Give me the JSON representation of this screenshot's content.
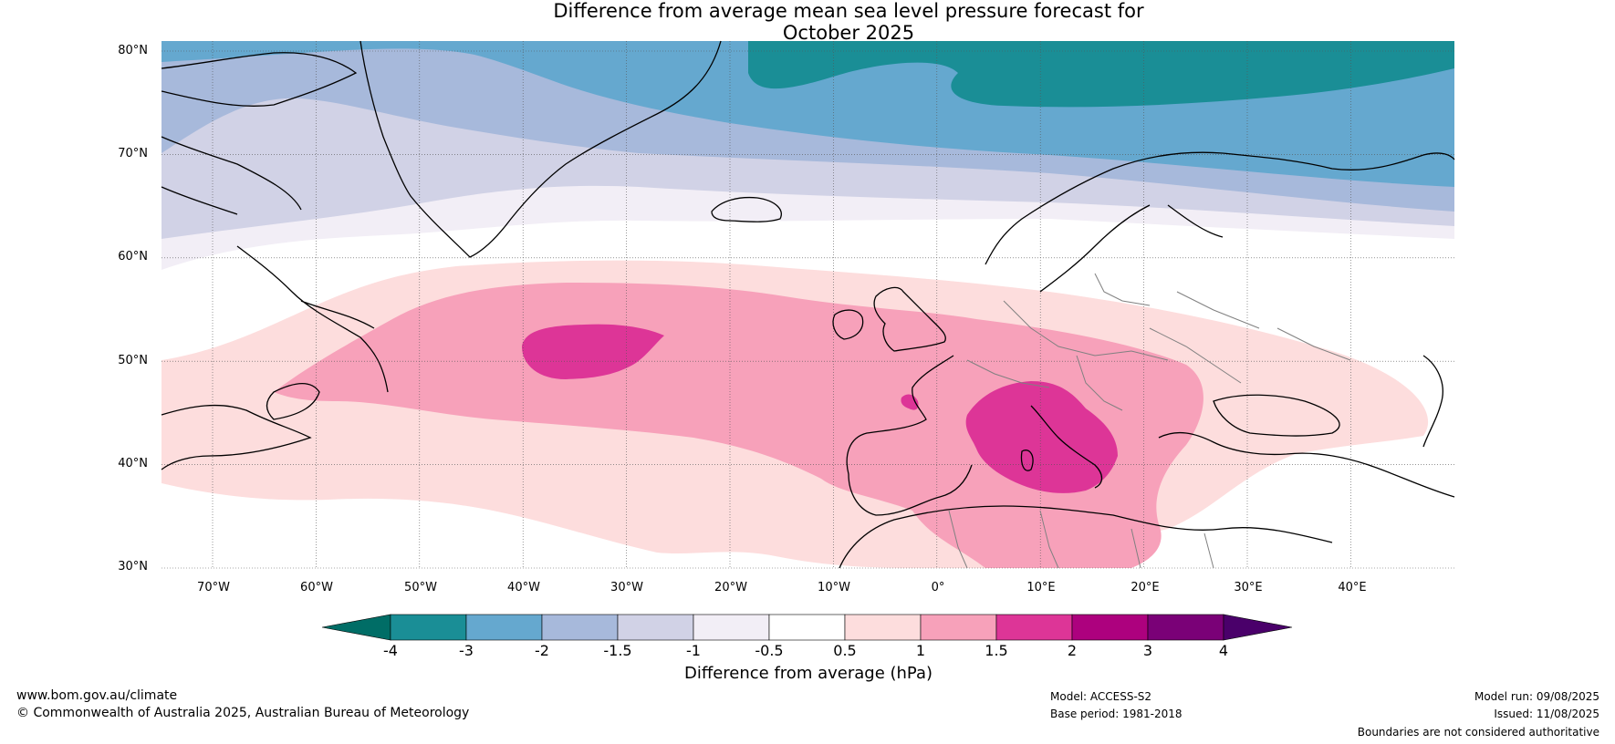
{
  "title": {
    "line1": "Difference from average mean sea level pressure forecast for",
    "line2": "October 2025"
  },
  "map": {
    "lat_labels": [
      "80°N",
      "70°N",
      "60°N",
      "50°N",
      "40°N",
      "30°N"
    ],
    "lon_labels": [
      "70°W",
      "60°W",
      "50°W",
      "40°W",
      "30°W",
      "20°W",
      "10°W",
      "0°",
      "10°E",
      "20°E",
      "30°E",
      "40°E"
    ],
    "fill_colors": {
      "m4_m3": "#1a8e96",
      "m3_m2": "#65a8cf",
      "m2_m15": "#a7b9db",
      "m15_m1": "#d1d2e6",
      "m1_m05": "#f2eef6",
      "m05_05": "#ffffff",
      "p05_1": "#fddddd",
      "p1_15": "#f7a1ba",
      "p15_2": "#dd3597",
      "land_line": "#000000",
      "border_line": "#808080"
    }
  },
  "colorbar": {
    "ticks": [
      "-4",
      "-3",
      "-2",
      "-1.5",
      "-1",
      "-0.5",
      "0.5",
      "1",
      "1.5",
      "2",
      "3",
      "4"
    ],
    "colors": [
      "#006d66",
      "#1a8e96",
      "#65a8cf",
      "#a7b9db",
      "#d1d2e6",
      "#f2eef6",
      "#ffffff",
      "#fddddd",
      "#f7a1ba",
      "#dd3597",
      "#ad017e",
      "#7a0177",
      "#4a006a"
    ],
    "title": "Difference from average (hPa)"
  },
  "footer": {
    "website": "www.bom.gov.au/climate",
    "copyright": "© Commonwealth of Australia 2025, Australian Bureau of Meteorology",
    "model": "Model: ACCESS-S2",
    "base_period": "Base period: 1981-2018",
    "model_run": "Model run: 09/08/2025",
    "issued": "Issued: 11/08/2025",
    "disclaimer": "Boundaries are not considered authoritative"
  }
}
